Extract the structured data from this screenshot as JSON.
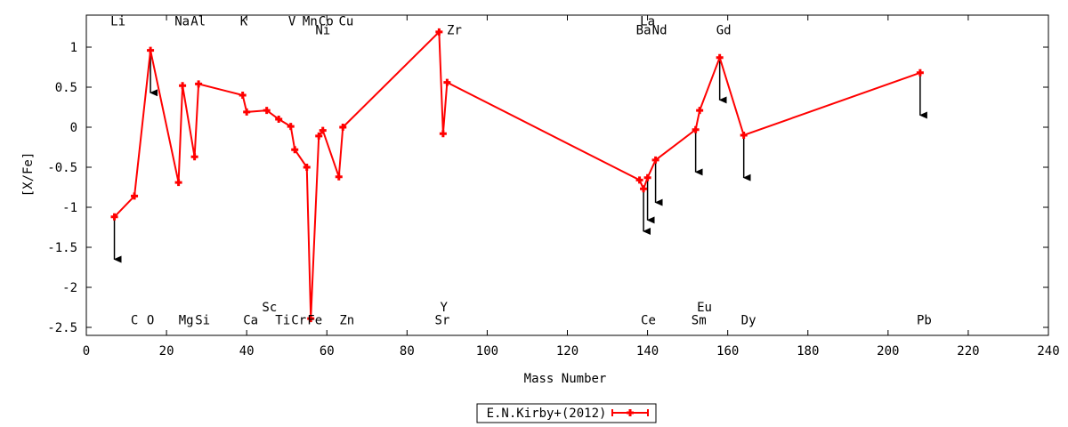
{
  "chart_data": {
    "type": "line",
    "title": "",
    "xlabel": "Mass Number",
    "ylabel": "[X/Fe]",
    "xlim": [
      0,
      240
    ],
    "ylim": [
      -2.6,
      1.4
    ],
    "xticks": [
      0,
      20,
      40,
      60,
      80,
      100,
      120,
      140,
      160,
      180,
      200,
      220,
      240
    ],
    "xtick_labels": [
      "0",
      "20",
      "40",
      "60",
      "80",
      "100",
      "120",
      "140",
      "160",
      "180",
      "200",
      "220",
      "240"
    ],
    "yticks": [
      -2.5,
      -2,
      -1.5,
      -1,
      -0.5,
      0,
      0.5,
      1
    ],
    "ytick_labels": [
      "-2.5",
      "-2",
      "-1.5",
      "-1",
      "-0.5",
      "0",
      "0.5",
      "1"
    ],
    "grid": false,
    "legend_position": "bottom-center",
    "series": [
      {
        "name": "E.N.Kirby+(2012)",
        "color": "#ff0000",
        "points": [
          {
            "x": 7,
            "y": -1.12
          },
          {
            "x": 12,
            "y": -0.86
          },
          {
            "x": 16,
            "y": 0.96
          },
          {
            "x": 23,
            "y": -0.69
          },
          {
            "x": 24,
            "y": 0.52
          },
          {
            "x": 27,
            "y": -0.37
          },
          {
            "x": 28,
            "y": 0.54
          },
          {
            "x": 39,
            "y": 0.4
          },
          {
            "x": 40,
            "y": 0.19
          },
          {
            "x": 45,
            "y": 0.21
          },
          {
            "x": 48,
            "y": 0.1
          },
          {
            "x": 51,
            "y": 0.01
          },
          {
            "x": 52,
            "y": -0.28
          },
          {
            "x": 55,
            "y": -0.5
          },
          {
            "x": 56,
            "y": -2.39
          },
          {
            "x": 58,
            "y": -0.11
          },
          {
            "x": 59,
            "y": -0.04
          },
          {
            "x": 63,
            "y": -0.62
          },
          {
            "x": 64,
            "y": 0.0
          },
          {
            "x": 88,
            "y": 1.19
          },
          {
            "x": 89,
            "y": -0.08
          },
          {
            "x": 90,
            "y": 0.56
          },
          {
            "x": 138,
            "y": -0.66
          },
          {
            "x": 139,
            "y": -0.77
          },
          {
            "x": 140,
            "y": -0.63
          },
          {
            "x": 142,
            "y": -0.41
          },
          {
            "x": 152,
            "y": -0.03
          },
          {
            "x": 153,
            "y": 0.21
          },
          {
            "x": 158,
            "y": 0.87
          },
          {
            "x": 164,
            "y": -0.1
          },
          {
            "x": 208,
            "y": 0.68
          }
        ]
      }
    ],
    "upper_limits": [
      {
        "x": 7,
        "y_from": -1.12,
        "y_to": -1.65
      },
      {
        "x": 16,
        "y_from": 0.96,
        "y_to": 0.43
      },
      {
        "x": 139,
        "y_from": -0.77,
        "y_to": -1.3
      },
      {
        "x": 140,
        "y_from": -0.63,
        "y_to": -1.16
      },
      {
        "x": 142,
        "y_from": -0.41,
        "y_to": -0.94
      },
      {
        "x": 152,
        "y_from": -0.03,
        "y_to": -0.56
      },
      {
        "x": 158,
        "y_from": 0.87,
        "y_to": 0.34
      },
      {
        "x": 164,
        "y_from": -0.1,
        "y_to": -0.63
      },
      {
        "x": 208,
        "y_from": 0.68,
        "y_to": 0.15
      }
    ],
    "element_labels": [
      {
        "text": "Li",
        "x": 7.9,
        "y": 1.27
      },
      {
        "text": "Na",
        "x": 23.9,
        "y": 1.27
      },
      {
        "text": "Al",
        "x": 27.9,
        "y": 1.27
      },
      {
        "text": "K",
        "x": 39.3,
        "y": 1.27
      },
      {
        "text": "V",
        "x": 51.3,
        "y": 1.27
      },
      {
        "text": "Mn",
        "x": 55.8,
        "y": 1.27
      },
      {
        "text": "Co",
        "x": 59.8,
        "y": 1.27
      },
      {
        "text": "Cu",
        "x": 64.8,
        "y": 1.27
      },
      {
        "text": "Ni",
        "x": 59.0,
        "y": 1.16
      },
      {
        "text": "Zr",
        "x": 91.8,
        "y": 1.16
      },
      {
        "text": "La",
        "x": 140.0,
        "y": 1.27
      },
      {
        "text": "Ba",
        "x": 139.0,
        "y": 1.16
      },
      {
        "text": "Nd",
        "x": 143.0,
        "y": 1.16
      },
      {
        "text": "Gd",
        "x": 159.0,
        "y": 1.16
      },
      {
        "text": "Sc",
        "x": 45.7,
        "y": -2.3
      },
      {
        "text": "Y",
        "x": 89.2,
        "y": -2.3
      },
      {
        "text": "Eu",
        "x": 154.2,
        "y": -2.3
      },
      {
        "text": "C",
        "x": 12.0,
        "y": -2.46
      },
      {
        "text": "O",
        "x": 16.0,
        "y": -2.46
      },
      {
        "text": "Mg",
        "x": 24.9,
        "y": -2.46
      },
      {
        "text": "Si",
        "x": 29.0,
        "y": -2.46
      },
      {
        "text": "Ca",
        "x": 41.0,
        "y": -2.46
      },
      {
        "text": "Ti",
        "x": 49.0,
        "y": -2.46
      },
      {
        "text": "Cr",
        "x": 53.0,
        "y": -2.46
      },
      {
        "text": "Fe",
        "x": 57.0,
        "y": -2.46
      },
      {
        "text": "Zn",
        "x": 65.0,
        "y": -2.46
      },
      {
        "text": "Sr",
        "x": 88.8,
        "y": -2.46
      },
      {
        "text": "Ce",
        "x": 140.2,
        "y": -2.46
      },
      {
        "text": "Sm",
        "x": 152.8,
        "y": -2.46
      },
      {
        "text": "Dy",
        "x": 165.2,
        "y": -2.46
      },
      {
        "text": "Pb",
        "x": 209.0,
        "y": -2.46
      }
    ]
  }
}
